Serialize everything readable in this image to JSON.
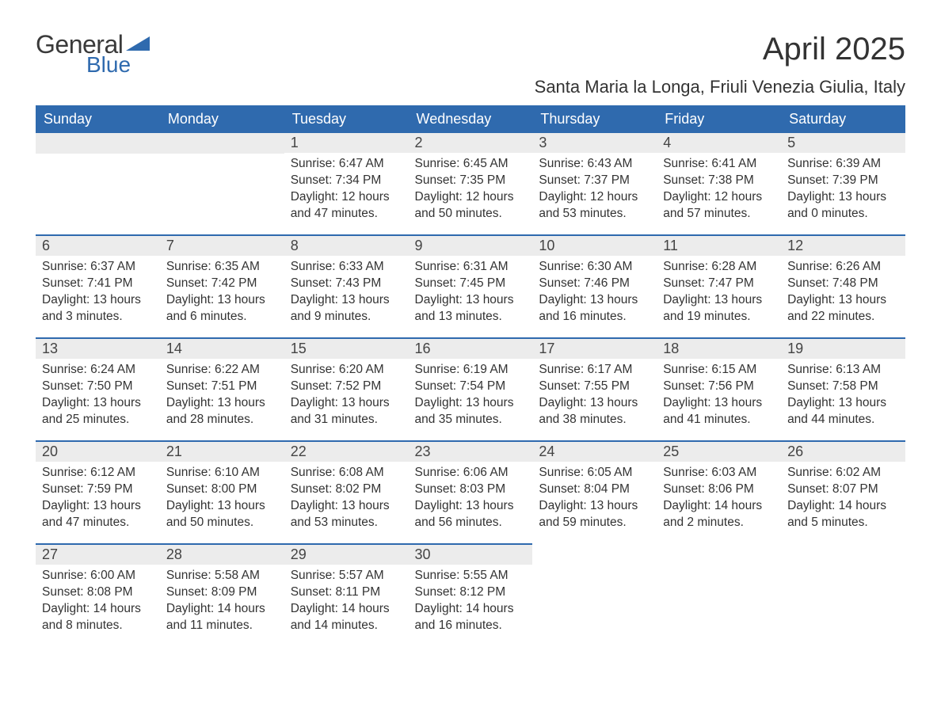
{
  "brand": {
    "general": "General",
    "blue": "Blue",
    "wedge_color": "#2f6aae"
  },
  "header": {
    "month_title": "April 2025",
    "location": "Santa Maria la Longa, Friuli Venezia Giulia, Italy"
  },
  "colors": {
    "header_bg": "#2f6aae",
    "header_fg": "#ffffff",
    "daynum_bg": "#ececec",
    "row_border": "#2f6aae",
    "text": "#333333",
    "page_bg": "#ffffff"
  },
  "weekdays": [
    "Sunday",
    "Monday",
    "Tuesday",
    "Wednesday",
    "Thursday",
    "Friday",
    "Saturday"
  ],
  "weeks": [
    [
      null,
      null,
      {
        "n": "1",
        "sunrise": "Sunrise: 6:47 AM",
        "sunset": "Sunset: 7:34 PM",
        "dl1": "Daylight: 12 hours",
        "dl2": "and 47 minutes."
      },
      {
        "n": "2",
        "sunrise": "Sunrise: 6:45 AM",
        "sunset": "Sunset: 7:35 PM",
        "dl1": "Daylight: 12 hours",
        "dl2": "and 50 minutes."
      },
      {
        "n": "3",
        "sunrise": "Sunrise: 6:43 AM",
        "sunset": "Sunset: 7:37 PM",
        "dl1": "Daylight: 12 hours",
        "dl2": "and 53 minutes."
      },
      {
        "n": "4",
        "sunrise": "Sunrise: 6:41 AM",
        "sunset": "Sunset: 7:38 PM",
        "dl1": "Daylight: 12 hours",
        "dl2": "and 57 minutes."
      },
      {
        "n": "5",
        "sunrise": "Sunrise: 6:39 AM",
        "sunset": "Sunset: 7:39 PM",
        "dl1": "Daylight: 13 hours",
        "dl2": "and 0 minutes."
      }
    ],
    [
      {
        "n": "6",
        "sunrise": "Sunrise: 6:37 AM",
        "sunset": "Sunset: 7:41 PM",
        "dl1": "Daylight: 13 hours",
        "dl2": "and 3 minutes."
      },
      {
        "n": "7",
        "sunrise": "Sunrise: 6:35 AM",
        "sunset": "Sunset: 7:42 PM",
        "dl1": "Daylight: 13 hours",
        "dl2": "and 6 minutes."
      },
      {
        "n": "8",
        "sunrise": "Sunrise: 6:33 AM",
        "sunset": "Sunset: 7:43 PM",
        "dl1": "Daylight: 13 hours",
        "dl2": "and 9 minutes."
      },
      {
        "n": "9",
        "sunrise": "Sunrise: 6:31 AM",
        "sunset": "Sunset: 7:45 PM",
        "dl1": "Daylight: 13 hours",
        "dl2": "and 13 minutes."
      },
      {
        "n": "10",
        "sunrise": "Sunrise: 6:30 AM",
        "sunset": "Sunset: 7:46 PM",
        "dl1": "Daylight: 13 hours",
        "dl2": "and 16 minutes."
      },
      {
        "n": "11",
        "sunrise": "Sunrise: 6:28 AM",
        "sunset": "Sunset: 7:47 PM",
        "dl1": "Daylight: 13 hours",
        "dl2": "and 19 minutes."
      },
      {
        "n": "12",
        "sunrise": "Sunrise: 6:26 AM",
        "sunset": "Sunset: 7:48 PM",
        "dl1": "Daylight: 13 hours",
        "dl2": "and 22 minutes."
      }
    ],
    [
      {
        "n": "13",
        "sunrise": "Sunrise: 6:24 AM",
        "sunset": "Sunset: 7:50 PM",
        "dl1": "Daylight: 13 hours",
        "dl2": "and 25 minutes."
      },
      {
        "n": "14",
        "sunrise": "Sunrise: 6:22 AM",
        "sunset": "Sunset: 7:51 PM",
        "dl1": "Daylight: 13 hours",
        "dl2": "and 28 minutes."
      },
      {
        "n": "15",
        "sunrise": "Sunrise: 6:20 AM",
        "sunset": "Sunset: 7:52 PM",
        "dl1": "Daylight: 13 hours",
        "dl2": "and 31 minutes."
      },
      {
        "n": "16",
        "sunrise": "Sunrise: 6:19 AM",
        "sunset": "Sunset: 7:54 PM",
        "dl1": "Daylight: 13 hours",
        "dl2": "and 35 minutes."
      },
      {
        "n": "17",
        "sunrise": "Sunrise: 6:17 AM",
        "sunset": "Sunset: 7:55 PM",
        "dl1": "Daylight: 13 hours",
        "dl2": "and 38 minutes."
      },
      {
        "n": "18",
        "sunrise": "Sunrise: 6:15 AM",
        "sunset": "Sunset: 7:56 PM",
        "dl1": "Daylight: 13 hours",
        "dl2": "and 41 minutes."
      },
      {
        "n": "19",
        "sunrise": "Sunrise: 6:13 AM",
        "sunset": "Sunset: 7:58 PM",
        "dl1": "Daylight: 13 hours",
        "dl2": "and 44 minutes."
      }
    ],
    [
      {
        "n": "20",
        "sunrise": "Sunrise: 6:12 AM",
        "sunset": "Sunset: 7:59 PM",
        "dl1": "Daylight: 13 hours",
        "dl2": "and 47 minutes."
      },
      {
        "n": "21",
        "sunrise": "Sunrise: 6:10 AM",
        "sunset": "Sunset: 8:00 PM",
        "dl1": "Daylight: 13 hours",
        "dl2": "and 50 minutes."
      },
      {
        "n": "22",
        "sunrise": "Sunrise: 6:08 AM",
        "sunset": "Sunset: 8:02 PM",
        "dl1": "Daylight: 13 hours",
        "dl2": "and 53 minutes."
      },
      {
        "n": "23",
        "sunrise": "Sunrise: 6:06 AM",
        "sunset": "Sunset: 8:03 PM",
        "dl1": "Daylight: 13 hours",
        "dl2": "and 56 minutes."
      },
      {
        "n": "24",
        "sunrise": "Sunrise: 6:05 AM",
        "sunset": "Sunset: 8:04 PM",
        "dl1": "Daylight: 13 hours",
        "dl2": "and 59 minutes."
      },
      {
        "n": "25",
        "sunrise": "Sunrise: 6:03 AM",
        "sunset": "Sunset: 8:06 PM",
        "dl1": "Daylight: 14 hours",
        "dl2": "and 2 minutes."
      },
      {
        "n": "26",
        "sunrise": "Sunrise: 6:02 AM",
        "sunset": "Sunset: 8:07 PM",
        "dl1": "Daylight: 14 hours",
        "dl2": "and 5 minutes."
      }
    ],
    [
      {
        "n": "27",
        "sunrise": "Sunrise: 6:00 AM",
        "sunset": "Sunset: 8:08 PM",
        "dl1": "Daylight: 14 hours",
        "dl2": "and 8 minutes."
      },
      {
        "n": "28",
        "sunrise": "Sunrise: 5:58 AM",
        "sunset": "Sunset: 8:09 PM",
        "dl1": "Daylight: 14 hours",
        "dl2": "and 11 minutes."
      },
      {
        "n": "29",
        "sunrise": "Sunrise: 5:57 AM",
        "sunset": "Sunset: 8:11 PM",
        "dl1": "Daylight: 14 hours",
        "dl2": "and 14 minutes."
      },
      {
        "n": "30",
        "sunrise": "Sunrise: 5:55 AM",
        "sunset": "Sunset: 8:12 PM",
        "dl1": "Daylight: 14 hours",
        "dl2": "and 16 minutes."
      },
      null,
      null,
      null
    ]
  ]
}
